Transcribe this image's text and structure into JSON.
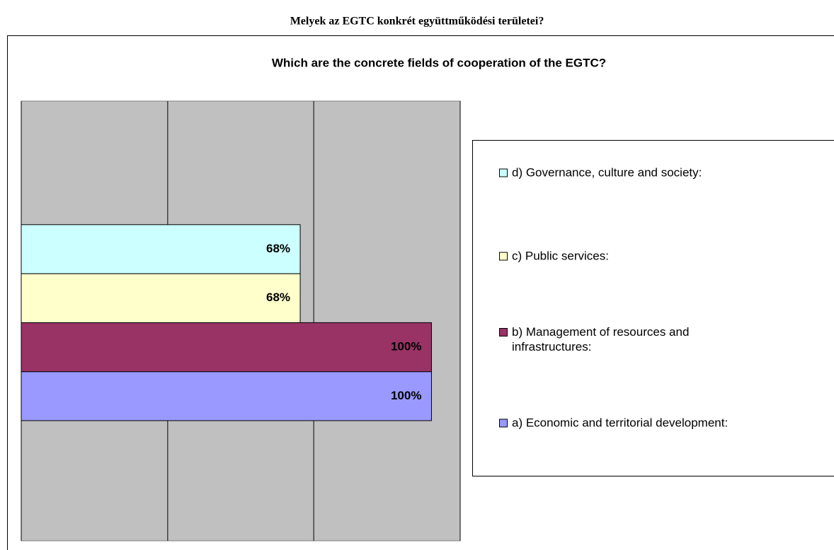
{
  "page_title": "Melyek az EGTC konkrét együttműködési területei?",
  "chart_data": {
    "type": "bar",
    "orientation": "horizontal",
    "title": "Which are the concrete fields of cooperation of the EGTC?",
    "categories": [
      null
    ],
    "series": [
      {
        "name": "a) Economic and territorial development:",
        "color": "#9999ff",
        "values": [
          100
        ],
        "value_labels": [
          "100%"
        ]
      },
      {
        "name": "b) Management of resources and infrastructures:",
        "color": "#993366",
        "values": [
          100
        ],
        "value_labels": [
          "100%"
        ]
      },
      {
        "name": "c) Public services:",
        "color": "#ffffcc",
        "values": [
          68
        ],
        "value_labels": [
          "68%"
        ]
      },
      {
        "name": "d) Governance, culture and society:",
        "color": "#ccffff",
        "values": [
          68
        ],
        "value_labels": [
          "68%"
        ]
      }
    ],
    "xlim": [
      0,
      107
    ],
    "xticks": [
      0,
      35.7,
      71.3,
      107
    ],
    "grid": true,
    "plot_background": "#c0c0c0",
    "legend": "right"
  }
}
